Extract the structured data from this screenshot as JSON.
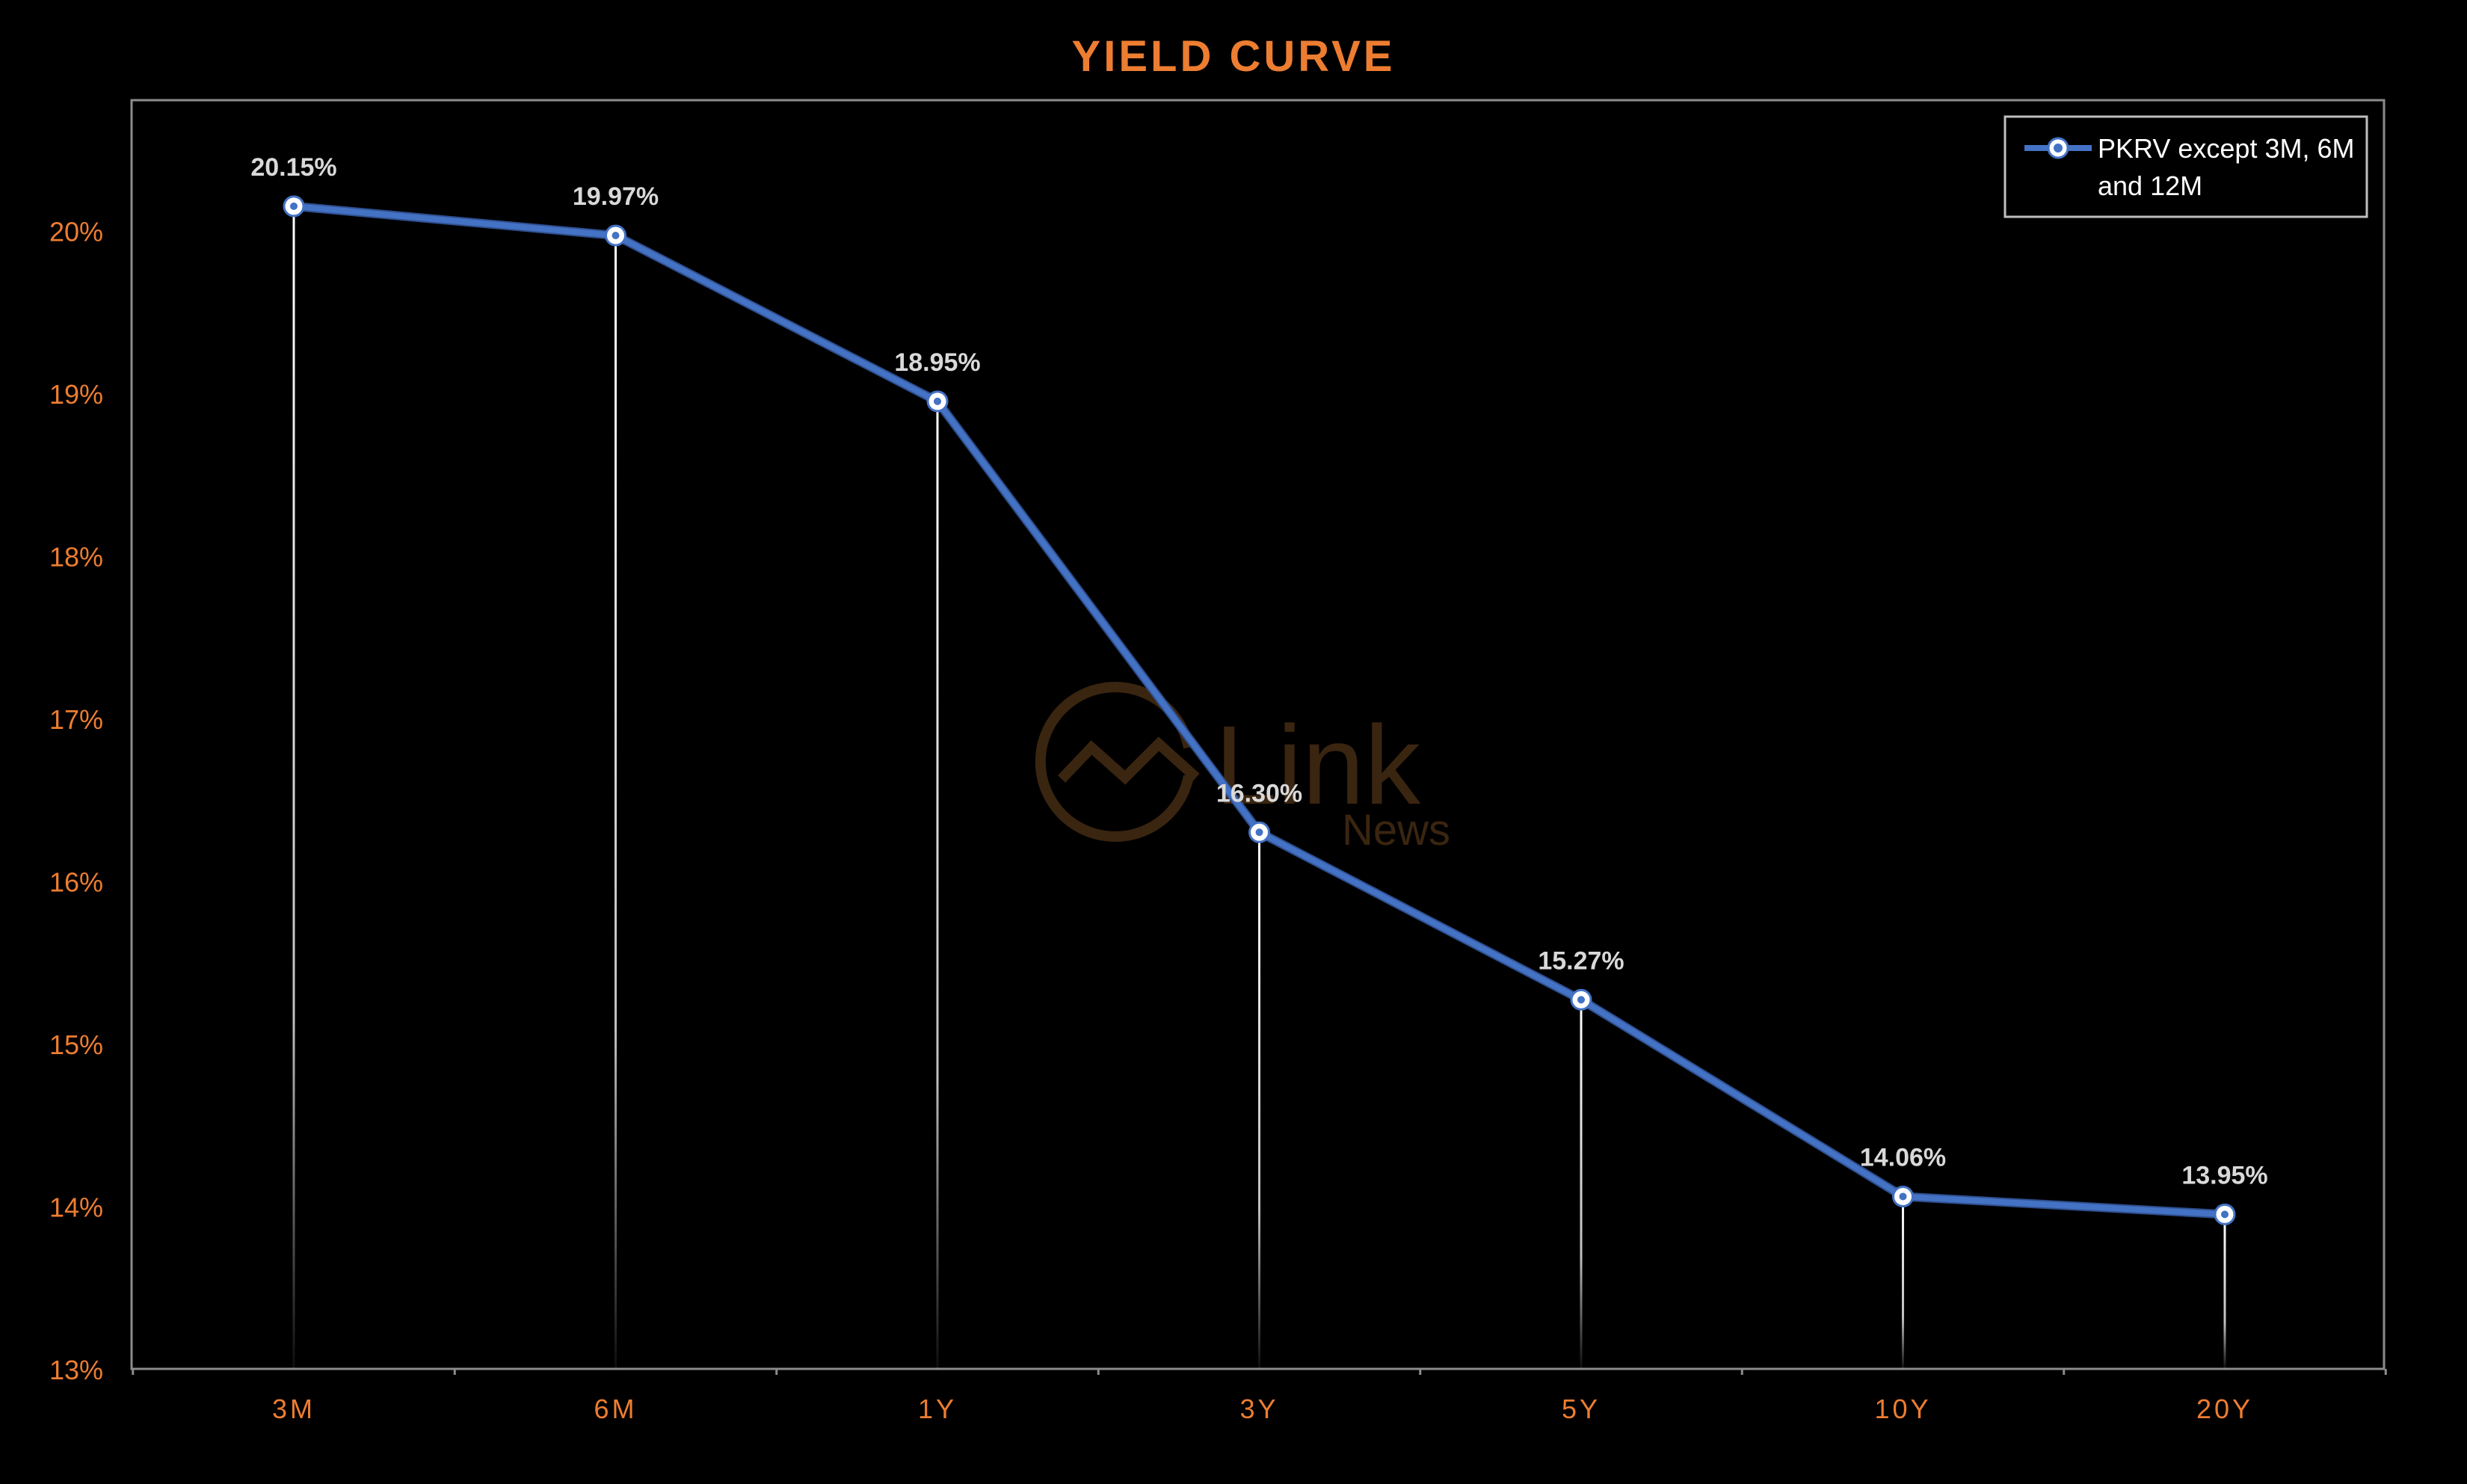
{
  "chart_data": {
    "type": "line",
    "title": "YIELD CURVE",
    "xlabel": "",
    "ylabel": "",
    "categories": [
      "3M",
      "6M",
      "1Y",
      "3Y",
      "5Y",
      "10Y",
      "20Y"
    ],
    "series": [
      {
        "name": "PKRV except 3M, 6M and 12M",
        "values": [
          20.15,
          19.97,
          18.95,
          16.3,
          15.27,
          14.06,
          13.95
        ],
        "data_labels": [
          "20.15%",
          "19.97%",
          "18.95%",
          "16.30%",
          "15.27%",
          "14.06%",
          "13.95%"
        ]
      }
    ],
    "y_ticks": [
      "13%",
      "14%",
      "15%",
      "16%",
      "17%",
      "18%",
      "19%",
      "20%"
    ],
    "ylim": [
      13,
      20.8
    ],
    "grid": false,
    "drop_lines": true,
    "legend": {
      "position": "top-right",
      "line1": "PKRV except 3M, 6M",
      "line2": "and 12M"
    },
    "watermark": {
      "text": "Link",
      "subtext": "News"
    },
    "colors": {
      "background": "#000000",
      "title": "#ED7D31",
      "tick_labels": "#ED7D31",
      "series_line": "#4472C4",
      "data_labels": "#D9D9D9",
      "frame": "#8C8C8C",
      "marker_fill": "#FFFFFF",
      "watermark": "#3A2510"
    }
  }
}
